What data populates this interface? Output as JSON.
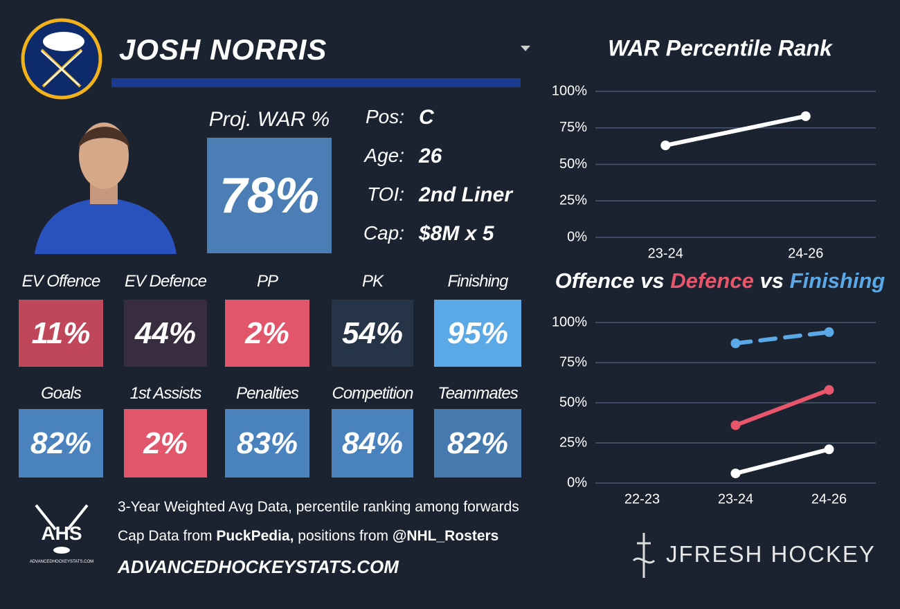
{
  "header": {
    "name": "JOSH NORRIS"
  },
  "projection": {
    "label": "Proj. WAR %",
    "value": "78%",
    "color": "#4a7eb5"
  },
  "info": [
    {
      "label": "Pos:",
      "value": "C"
    },
    {
      "label": "Age:",
      "value": "26"
    },
    {
      "label": "TOI:",
      "value": "2nd Liner"
    },
    {
      "label": "Cap:",
      "value": "$8M x 5"
    }
  ],
  "tiles": [
    {
      "label": "EV Offence",
      "value": "11%",
      "color": "#c0475a"
    },
    {
      "label": "EV Defence",
      "value": "44%",
      "color": "#372d3e"
    },
    {
      "label": "PP",
      "value": "2%",
      "color": "#e2566b"
    },
    {
      "label": "PK",
      "value": "54%",
      "color": "#263448"
    },
    {
      "label": "Finishing",
      "value": "95%",
      "color": "#5aa8e6"
    },
    {
      "label": "Goals",
      "value": "82%",
      "color": "#4a82bd"
    },
    {
      "label": "1st Assists",
      "value": "2%",
      "color": "#e2566b"
    },
    {
      "label": "Penalties",
      "value": "83%",
      "color": "#4a82bd"
    },
    {
      "label": "Competition",
      "value": "84%",
      "color": "#4a82bd"
    },
    {
      "label": "Teammates",
      "value": "82%",
      "color": "#4679ad"
    }
  ],
  "footer": {
    "logo": "AHS",
    "logo_caption": "ADVANCEDHOCKEYSTATS.COM",
    "line1": "3-Year Weighted Avg Data, percentile ranking among forwards",
    "line2": [
      "Cap Data from ",
      "PuckPedia,",
      " positions from ",
      "@NHL_Rosters"
    ],
    "site": "ADVANCEDHOCKEYSTATS.COM",
    "brand": "JFRESH HOCKEY"
  },
  "chart_data": [
    {
      "type": "line",
      "title": "WAR Percentile Rank",
      "categories": [
        "23-24",
        "24-26"
      ],
      "series": [
        {
          "color": "#ffffff",
          "values": [
            63,
            83
          ]
        }
      ],
      "ylim": [
        0,
        100
      ],
      "yticks": [
        {
          "value": 0,
          "label": "0%"
        },
        {
          "value": 25,
          "label": "25%"
        },
        {
          "value": 50,
          "label": "50%"
        },
        {
          "value": 75,
          "label": "75%"
        },
        {
          "value": 100,
          "label": "100%"
        }
      ],
      "grid": true
    },
    {
      "type": "line",
      "title_joiner": "vs",
      "categories": [
        "22-23",
        "23-24",
        "24-26"
      ],
      "series": [
        {
          "name": "Offence",
          "color": "#ffffff",
          "values": [
            null,
            6,
            21
          ]
        },
        {
          "name": "Defence",
          "color": "#e8566b",
          "values": [
            null,
            36,
            58
          ]
        },
        {
          "name": "Finishing",
          "color": "#5aa8e6",
          "dashed": true,
          "values": [
            null,
            87,
            94
          ]
        }
      ],
      "ylim": [
        0,
        100
      ],
      "yticks": [
        {
          "value": 0,
          "label": "0%"
        },
        {
          "value": 25,
          "label": "25%"
        },
        {
          "value": 50,
          "label": "50%"
        },
        {
          "value": 75,
          "label": "75%"
        },
        {
          "value": 100,
          "label": "100%"
        }
      ],
      "grid": true
    }
  ]
}
